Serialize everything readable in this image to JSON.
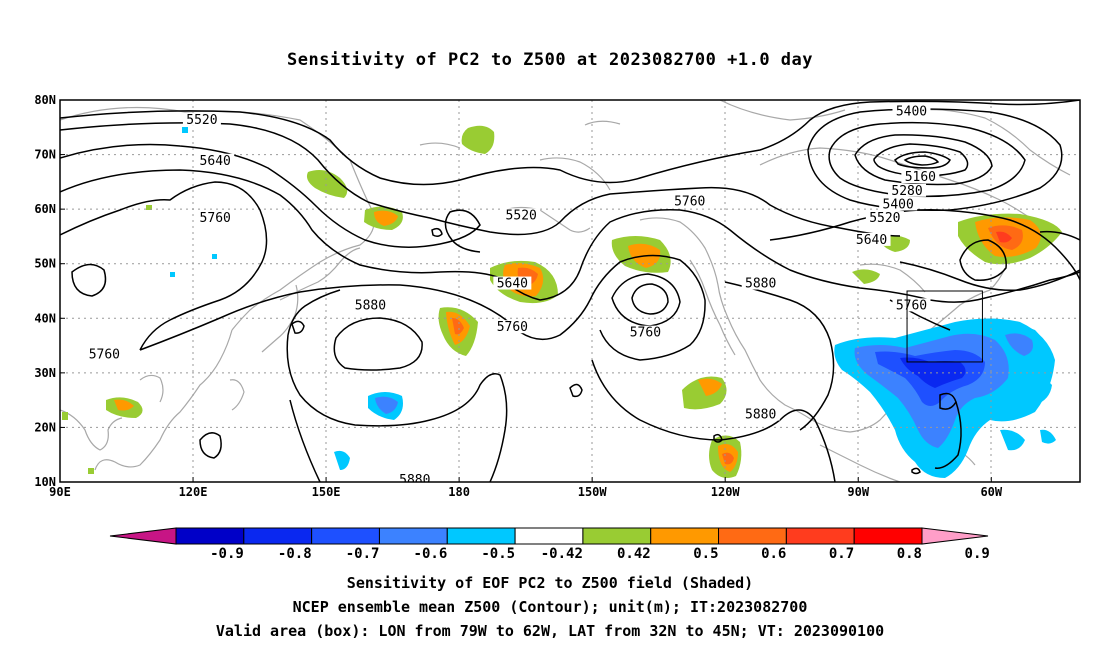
{
  "title": "Sensitivity of PC2 to Z500 at 2023082700 +1.0 day",
  "footer": {
    "line1": "Sensitivity of EOF PC2 to Z500 field (Shaded)",
    "line2": "NCEP ensemble mean Z500 (Contour); unit(m); IT:2023082700",
    "line3": "Valid area (box): LON from 79W to 62W, LAT from 32N to 45N; VT: 2023090100"
  },
  "axes": {
    "lat_labels": [
      "80N",
      "70N",
      "60N",
      "50N",
      "40N",
      "30N",
      "20N",
      "10N"
    ],
    "lat_values": [
      80,
      70,
      60,
      50,
      40,
      30,
      20,
      10
    ],
    "lon_labels": [
      "90E",
      "120E",
      "150E",
      "180",
      "150W",
      "120W",
      "90W",
      "60W"
    ],
    "lon_values": [
      90,
      120,
      150,
      180,
      210,
      240,
      270,
      300
    ],
    "lon_range": [
      90,
      320
    ],
    "lat_range": [
      10,
      80
    ]
  },
  "valid_box": {
    "lon_west": -79,
    "lon_east": -62,
    "lat_south": 32,
    "lat_north": 45
  },
  "colorbar": {
    "labels": [
      "-0.9",
      "-0.8",
      "-0.7",
      "-0.6",
      "-0.5",
      "-0.42",
      "0.42",
      "0.5",
      "0.6",
      "0.7",
      "0.8",
      "0.9"
    ],
    "colors": [
      "#c71585",
      "#0000c8",
      "#0a28f0",
      "#1e50ff",
      "#3c82ff",
      "#00c8ff",
      "#ffffff",
      "#99cc33",
      "#ff9900",
      "#ff6a14",
      "#ff3c1e",
      "#ff0000",
      "#ff9ec8"
    ]
  },
  "contour_labels": [
    {
      "text": "5520",
      "lon": 122,
      "lat": 76
    },
    {
      "text": "5640",
      "lon": 125,
      "lat": 68.5
    },
    {
      "text": "5760",
      "lon": 125,
      "lat": 58
    },
    {
      "text": "5760",
      "lon": 100,
      "lat": 33
    },
    {
      "text": "5880",
      "lon": 160,
      "lat": 42
    },
    {
      "text": "5520",
      "lon": 194,
      "lat": 58.5
    },
    {
      "text": "5640",
      "lon": 192,
      "lat": 46
    },
    {
      "text": "5760",
      "lon": 192,
      "lat": 38
    },
    {
      "text": "5760",
      "lon": 232,
      "lat": 61
    },
    {
      "text": "5760",
      "lon": 222,
      "lat": 37
    },
    {
      "text": "5880",
      "lon": 248,
      "lat": 46
    },
    {
      "text": "5880",
      "lon": 248,
      "lat": 22
    },
    {
      "text": "5880",
      "lon": 170,
      "lat": 10
    },
    {
      "text": "5400",
      "lon": 282,
      "lat": 77.5
    },
    {
      "text": "5160",
      "lon": 284,
      "lat": 65.5
    },
    {
      "text": "5280",
      "lon": 281,
      "lat": 63
    },
    {
      "text": "5400",
      "lon": 279,
      "lat": 60.5
    },
    {
      "text": "5520",
      "lon": 276,
      "lat": 58
    },
    {
      "text": "5640",
      "lon": 273,
      "lat": 54
    },
    {
      "text": "5760",
      "lon": 282,
      "lat": 42
    }
  ]
}
